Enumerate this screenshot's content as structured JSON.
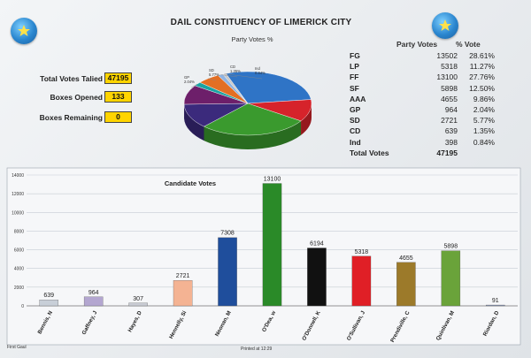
{
  "title": "DAIL CONSTITUENCY OF LIMERICK CITY",
  "pie": {
    "title": "Party Votes %",
    "labels": [
      "GP\n2.04%",
      "SD\n5.77%",
      "CD\n1.35%",
      "Ind\n0.84%"
    ]
  },
  "stats": [
    {
      "label": "Total Votes Talied",
      "value": "47195"
    },
    {
      "label": "Boxes Opened",
      "value": "133"
    },
    {
      "label": "Boxes Remaining",
      "value": "0"
    }
  ],
  "party_table": {
    "header_votes": "Party Votes",
    "header_pct": "% Vote",
    "rows": [
      {
        "party": "FG",
        "votes": "13502",
        "pct": "28.61%",
        "color": "#2f74c6"
      },
      {
        "party": "LP",
        "votes": "5318",
        "pct": "11.27%",
        "color": "#d6232b"
      },
      {
        "party": "FF",
        "votes": "13100",
        "pct": "27.76%",
        "color": "#3a9a2e"
      },
      {
        "party": "SF",
        "votes": "5898",
        "pct": "12.50%",
        "color": "#3b2a7c"
      },
      {
        "party": "AAA",
        "votes": "4655",
        "pct": "9.86%",
        "color": "#6d1f6a"
      },
      {
        "party": "GP",
        "votes": "964",
        "pct": "2.04%",
        "color": "#1aa3a3"
      },
      {
        "party": "SD",
        "votes": "2721",
        "pct": "5.77%",
        "color": "#e36f24"
      },
      {
        "party": "CD",
        "votes": "639",
        "pct": "1.35%",
        "color": "#8fb4e3"
      },
      {
        "party": "Ind",
        "votes": "398",
        "pct": "0.84%",
        "color": "#c9c9c9"
      }
    ],
    "total_label": "Total Votes",
    "total_value": "47195"
  },
  "chart_data": {
    "type": "bar",
    "title": "Candidate Votes",
    "categories": [
      "Bennis, N",
      "Gaffney, J",
      "Hayes, D",
      "Hennelly, Si",
      "Noonan, M",
      "O'Dea, w",
      "O'Donnell, K",
      "O'Sullivan, J",
      "Prendiville, C",
      "Quinlivan, M",
      "Riordan, D"
    ],
    "values": [
      639,
      964,
      307,
      2721,
      7308,
      13100,
      6194,
      5318,
      4655,
      5898,
      91
    ],
    "colors": [
      "#c8cfd8",
      "#b3a6d0",
      "#c9ccd3",
      "#f4b393",
      "#1f4e9c",
      "#2a8a28",
      "#111111",
      "#e01f26",
      "#9c7a2a",
      "#6aa33a",
      "#8898b8"
    ],
    "ylim": [
      0,
      14000
    ],
    "yticks": [
      0,
      2000,
      4000,
      6000,
      8000,
      10000,
      12000,
      14000
    ],
    "grid": true
  },
  "footer": {
    "left": "First Gaul",
    "center": "Printed at 12:29"
  }
}
